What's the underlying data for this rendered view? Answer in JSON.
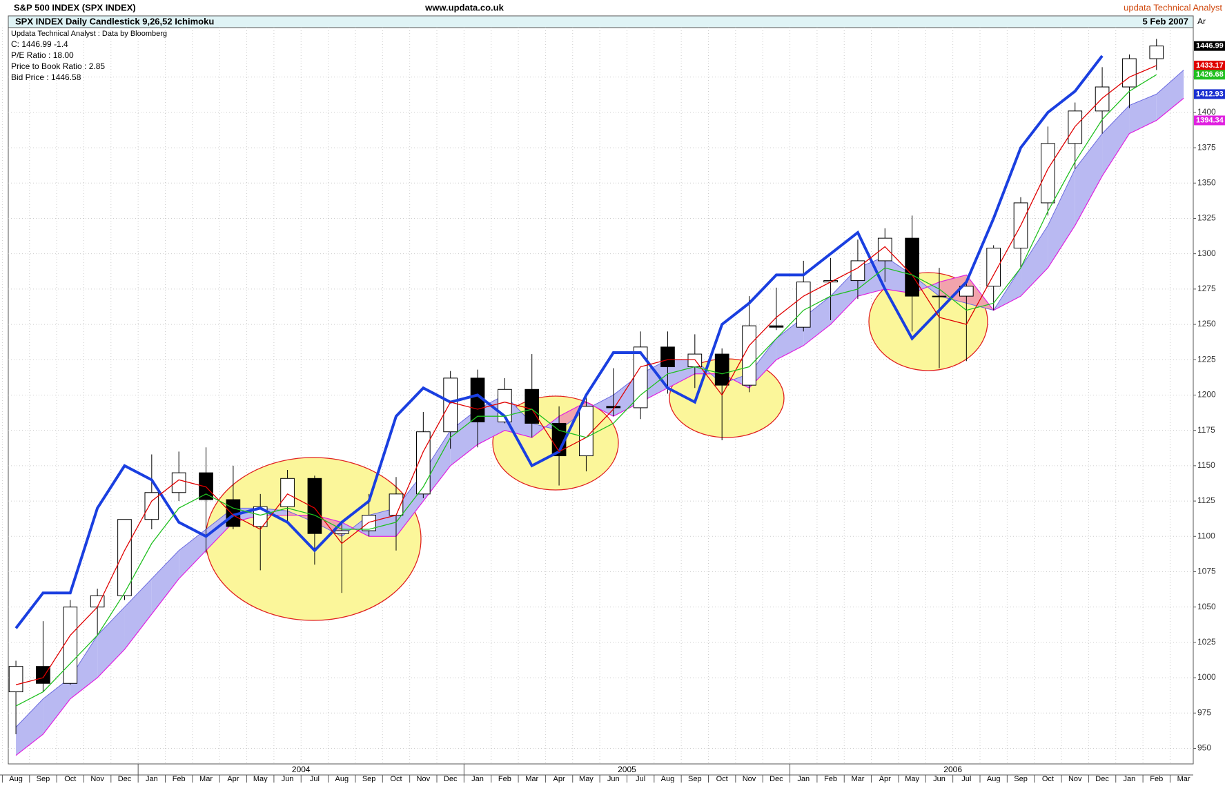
{
  "header": {
    "title": "S&P 500 INDEX (SPX INDEX)",
    "site": "www.updata.co.uk",
    "brand": "updata Technical Analyst"
  },
  "chart_data": {
    "type": "candlestick",
    "title": "SPX INDEX Daily Candlestick  9,26,52 Ichimoku",
    "date": "5 Feb 2007",
    "axis_tag": "Ar",
    "info": [
      "Updata Technical Analyst : Data by Bloomberg",
      "C: 1446.99  -1.4",
      "P/E Ratio : 18.00",
      "Price to Book Ratio : 2.85",
      "Bid Price : 1446.58"
    ],
    "categories": [
      "Aug",
      "Sep",
      "Oct",
      "Nov",
      "Dec",
      "Jan",
      "Feb",
      "Mar",
      "Apr",
      "May",
      "Jun",
      "Jul",
      "Aug",
      "Sep",
      "Oct",
      "Nov",
      "Dec",
      "Jan",
      "Feb",
      "Mar",
      "Apr",
      "May",
      "Jun",
      "Jul",
      "Aug",
      "Sep",
      "Oct",
      "Nov",
      "Dec",
      "Jan",
      "Feb",
      "Mar",
      "Apr",
      "May",
      "Jun",
      "Jul",
      "Aug",
      "Sep",
      "Oct",
      "Nov",
      "Dec",
      "Jan",
      "Feb",
      "Mar"
    ],
    "years": [
      "2004",
      "2005",
      "2006"
    ],
    "open": [
      990,
      1008,
      996,
      1050,
      1058,
      1112,
      1131,
      1145,
      1126,
      1107,
      1121,
      1141,
      1102,
      1104,
      1115,
      1130,
      1174,
      1212,
      1181,
      1204,
      1180,
      1157,
      1192,
      1191,
      1234,
      1220,
      1229,
      1207,
      1249,
      1248,
      1280,
      1281,
      1295,
      1311,
      1270,
      1270,
      1277,
      1304,
      1336,
      1378,
      1401,
      1418,
      1438,
      null
    ],
    "high": [
      1012,
      1040,
      1055,
      1063,
      1112,
      1158,
      1160,
      1163,
      1150,
      1130,
      1147,
      1143,
      1110,
      1130,
      1142,
      1188,
      1217,
      1218,
      1212,
      1229,
      1192,
      1200,
      1219,
      1245,
      1245,
      1243,
      1233,
      1270,
      1276,
      1295,
      1297,
      1310,
      1318,
      1327,
      1290,
      1280,
      1306,
      1340,
      1390,
      1407,
      1432,
      1441,
      1452,
      null
    ],
    "low": [
      960,
      990,
      995,
      1030,
      1055,
      1105,
      1125,
      1088,
      1105,
      1076,
      1110,
      1080,
      1060,
      1100,
      1090,
      1127,
      1162,
      1163,
      1180,
      1170,
      1136,
      1146,
      1185,
      1183,
      1201,
      1205,
      1168,
      1202,
      1246,
      1245,
      1253,
      1268,
      1280,
      1245,
      1219,
      1224,
      1260,
      1290,
      1327,
      1360,
      1385,
      1403,
      1430,
      null
    ],
    "close": [
      1008,
      996,
      1050,
      1058,
      1112,
      1131,
      1145,
      1126,
      1107,
      1121,
      1141,
      1102,
      1104,
      1115,
      1130,
      1174,
      1212,
      1181,
      1204,
      1180,
      1157,
      1192,
      1191,
      1234,
      1220,
      1229,
      1207,
      1249,
      1248,
      1280,
      1281,
      1295,
      1311,
      1270,
      1270,
      1277,
      1304,
      1336,
      1378,
      1401,
      1418,
      1438,
      1446.99,
      null
    ],
    "candle_colors": {
      "up": "#ffffff",
      "down": "#000000",
      "outline": "#000000"
    },
    "cloud": {
      "span_a": [
        965,
        985,
        1000,
        1030,
        1050,
        1070,
        1090,
        1105,
        1120,
        1120,
        1118,
        1110,
        1100,
        1115,
        1120,
        1145,
        1175,
        1190,
        1200,
        1180,
        1175,
        1190,
        1200,
        1215,
        1225,
        1225,
        1208,
        1215,
        1240,
        1255,
        1270,
        1290,
        1298,
        1285,
        1270,
        1265,
        1260,
        1290,
        1320,
        1360,
        1385,
        1405,
        1412.93,
        1430
      ],
      "span_b": [
        945,
        960,
        985,
        1000,
        1020,
        1045,
        1070,
        1090,
        1110,
        1115,
        1115,
        1115,
        1110,
        1100,
        1100,
        1125,
        1150,
        1165,
        1175,
        1170,
        1185,
        1195,
        1185,
        1195,
        1205,
        1215,
        1215,
        1205,
        1225,
        1235,
        1250,
        1270,
        1275,
        1272,
        1280,
        1285,
        1260,
        1270,
        1290,
        1320,
        1355,
        1385,
        1394.34,
        1410
      ],
      "up_color": "#b9b9f2",
      "down_color": "#f2a3ac",
      "a_color": "#6a6ae0",
      "b_color": "#e020e0"
    },
    "lines": [
      {
        "color": "#1a3fe0",
        "width": 4,
        "values": [
          1035,
          1060,
          1060,
          1120,
          1150,
          1140,
          1110,
          1100,
          1115,
          1120,
          1110,
          1090,
          1110,
          1125,
          1185,
          1205,
          1195,
          1200,
          1185,
          1150,
          1160,
          1200,
          1230,
          1230,
          1205,
          1195,
          1250,
          1265,
          1285,
          1285,
          1300,
          1315,
          1275,
          1240,
          1260,
          1280,
          1325,
          1375,
          1400,
          1415,
          1440,
          null,
          null,
          null
        ]
      },
      {
        "color": "#e00000",
        "width": 1.3,
        "values": [
          995,
          1000,
          1030,
          1050,
          1090,
          1125,
          1140,
          1135,
          1115,
          1105,
          1130,
          1120,
          1095,
          1110,
          1115,
          1160,
          1195,
          1190,
          1195,
          1190,
          1160,
          1170,
          1190,
          1220,
          1225,
          1225,
          1200,
          1235,
          1255,
          1270,
          1280,
          1290,
          1305,
          1285,
          1255,
          1250,
          1285,
          1320,
          1360,
          1390,
          1410,
          1425,
          1433.17,
          null
        ]
      },
      {
        "color": "#20c020",
        "width": 1.3,
        "values": [
          980,
          990,
          1010,
          1030,
          1060,
          1095,
          1120,
          1130,
          1120,
          1115,
          1120,
          1115,
          1105,
          1105,
          1110,
          1135,
          1170,
          1185,
          1185,
          1190,
          1175,
          1170,
          1180,
          1200,
          1215,
          1220,
          1215,
          1220,
          1240,
          1260,
          1270,
          1275,
          1290,
          1285,
          1275,
          1260,
          1265,
          1290,
          1330,
          1365,
          1395,
          1415,
          1426.68,
          null
        ]
      }
    ],
    "last_values": [
      {
        "value": 1446.99,
        "color": "#000000"
      },
      {
        "value": 1433.17,
        "color": "#e00000"
      },
      {
        "value": 1426.68,
        "color": "#20c020"
      },
      {
        "value": 1412.93,
        "color": "#1a2fd0"
      },
      {
        "value": 1394.34,
        "color": "#e020e0"
      }
    ],
    "ylim": [
      939,
      1460
    ],
    "yticks": [
      950,
      975,
      1000,
      1025,
      1050,
      1075,
      1100,
      1125,
      1150,
      1175,
      1200,
      1225,
      1250,
      1275,
      1300,
      1325,
      1350,
      1375,
      1400,
      1425
    ],
    "grid": true
  }
}
